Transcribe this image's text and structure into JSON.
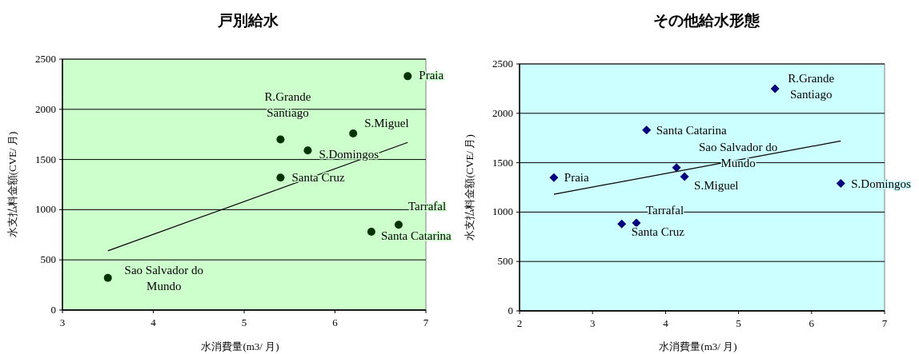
{
  "chart_data": [
    {
      "type": "scatter",
      "title": "戸別給水",
      "xlabel": "水消費量(m3/ 月)",
      "ylabel": "水支払料金額(CVE/ 月)",
      "xlim": [
        3,
        7
      ],
      "ylim": [
        0,
        2500
      ],
      "xticks": [
        3,
        4,
        5,
        6,
        7
      ],
      "yticks": [
        0,
        500,
        1000,
        1500,
        2000,
        2500
      ],
      "grid": "y",
      "series": [
        {
          "type": "scatter",
          "marker": "circle",
          "color": "#003300",
          "x": [
            6.8,
            5.4,
            6.2,
            5.7,
            5.4,
            6.7,
            6.4,
            3.5
          ],
          "values": [
            2330,
            1700,
            1760,
            1590,
            1320,
            850,
            780,
            320
          ]
        },
        {
          "type": "line",
          "color": "#000000",
          "x": [
            3.5,
            6.8
          ],
          "values": [
            590,
            1670
          ]
        }
      ],
      "annotations": [
        {
          "text": "Praia",
          "x": 6.8,
          "y": 2330
        },
        {
          "text": "R.Grande Santiago",
          "x": 5.4,
          "y": 1700
        },
        {
          "text": "S.Miguel",
          "x": 6.2,
          "y": 1760
        },
        {
          "text": "S.Domingos",
          "x": 5.7,
          "y": 1590
        },
        {
          "text": "Santa Cruz",
          "x": 5.4,
          "y": 1320
        },
        {
          "text": "Tarrafal",
          "x": 6.7,
          "y": 850
        },
        {
          "text": "Santa Catarina",
          "x": 6.4,
          "y": 780
        },
        {
          "text": "Sao Salvador do Mundo",
          "x": 3.5,
          "y": 320
        }
      ]
    },
    {
      "type": "scatter",
      "title": "その他給水形態",
      "xlabel": "水消費量(m3/ 月)",
      "ylabel": "水支払料金額(CVE/ 月)",
      "xlim": [
        2,
        7
      ],
      "ylim": [
        0,
        2500
      ],
      "xticks": [
        2,
        3,
        4,
        5,
        6,
        7
      ],
      "yticks": [
        0,
        500,
        1000,
        1500,
        2000,
        2500
      ],
      "grid": "y",
      "series": [
        {
          "type": "scatter",
          "marker": "diamond",
          "color": "#000080",
          "x": [
            2.47,
            5.5,
            3.74,
            4.15,
            4.26,
            6.4,
            3.6,
            3.4
          ],
          "values": [
            1350,
            2250,
            1830,
            1450,
            1360,
            1290,
            890,
            880
          ]
        },
        {
          "type": "line",
          "color": "#000000",
          "x": [
            2.47,
            6.4
          ],
          "values": [
            1180,
            1720
          ]
        }
      ],
      "annotations": [
        {
          "text": "Praia",
          "x": 2.47,
          "y": 1350
        },
        {
          "text": "R.Grande Santiago",
          "x": 5.5,
          "y": 2250
        },
        {
          "text": "Santa Catarina",
          "x": 3.74,
          "y": 1830
        },
        {
          "text": "Sao Salvador do Mundo",
          "x": 4.15,
          "y": 1450
        },
        {
          "text": "S.Miguel",
          "x": 4.26,
          "y": 1360
        },
        {
          "text": "S.Domingos",
          "x": 6.4,
          "y": 1290
        },
        {
          "text": "Tarrafal",
          "x": 3.6,
          "y": 890
        },
        {
          "text": "Santa Cruz",
          "x": 3.4,
          "y": 880
        }
      ]
    }
  ]
}
